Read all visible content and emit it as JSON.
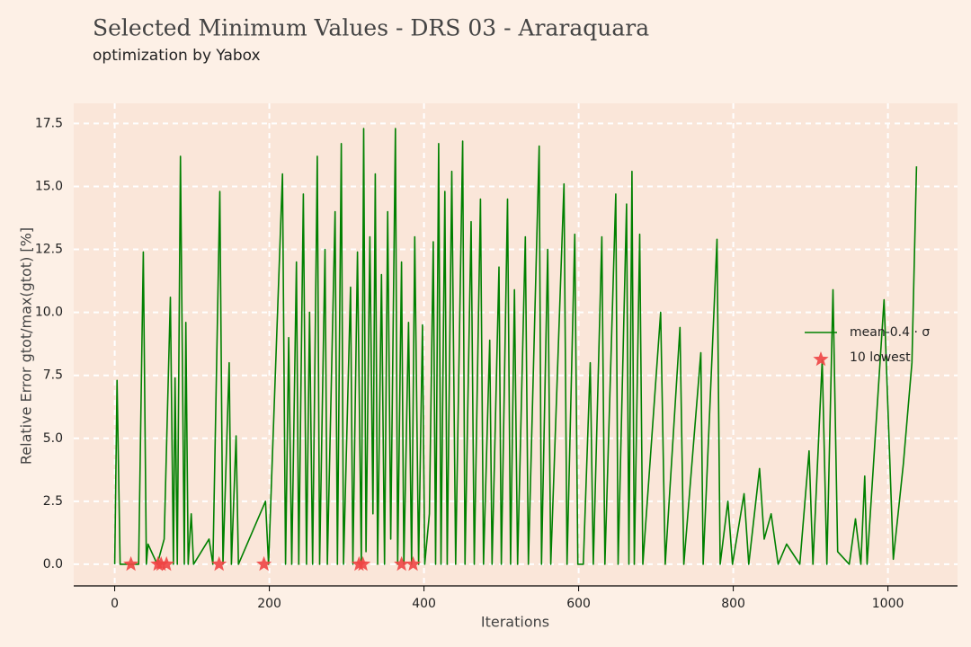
{
  "chart_data": {
    "type": "line",
    "title": "Selected Minimum Values - DRS 03 - Araraquara",
    "subtitle": "optimization by Yabox",
    "x_label": "Iterations",
    "y_label": "Relative Error gtot/max(gtot) [%]",
    "xlim": [
      -53,
      1090
    ],
    "ylim": [
      -0.86,
      18.3
    ],
    "xticks": [
      0,
      200,
      400,
      600,
      800,
      1000
    ],
    "yticks": [
      {
        "value": 0,
        "label": "0.0"
      },
      2.5,
      {
        "value": 5,
        "label": "5.0"
      },
      7.5,
      {
        "value": 10,
        "label": "10.0"
      },
      12.5,
      {
        "value": 15,
        "label": "15.0"
      },
      17.5
    ],
    "grid": true,
    "legend": "right",
    "series": [
      {
        "name": "mean-0.4 · σ",
        "color": "#008000",
        "x": [
          0,
          3,
          7,
          31,
          37,
          41,
          43,
          55,
          64,
          72,
          76,
          78,
          81,
          85,
          90,
          92,
          95,
          99,
          102,
          122,
          127,
          136,
          140,
          148,
          151,
          157,
          160,
          195,
          199,
          217,
          221,
          225,
          229,
          235,
          238,
          244,
          248,
          252,
          256,
          262,
          265,
          272,
          275,
          285,
          288,
          293,
          296,
          305,
          308,
          314,
          319,
          322,
          325,
          330,
          334,
          337,
          340,
          345,
          349,
          353,
          357,
          363,
          366,
          371,
          374,
          380,
          384,
          388,
          393,
          398,
          401,
          407,
          412,
          415,
          419,
          422,
          427,
          430,
          436,
          441,
          450,
          453,
          461,
          465,
          473,
          477,
          485,
          488,
          497,
          500,
          508,
          512,
          517,
          521,
          531,
          535,
          549,
          552,
          560,
          564,
          581,
          585,
          595,
          599,
          606,
          615,
          619,
          630,
          634,
          648,
          651,
          662,
          665,
          669,
          672,
          679,
          683,
          706,
          712,
          731,
          736,
          758,
          761,
          779,
          783,
          793,
          799,
          814,
          820,
          834,
          840,
          849,
          858,
          869,
          886,
          898,
          903,
          915,
          921,
          929,
          935,
          950,
          958,
          965,
          970,
          973,
          995,
          1007,
          1020,
          1031,
          1037
        ],
        "values": [
          0,
          7.3,
          0,
          0,
          12.4,
          0,
          0.8,
          0,
          1,
          10.6,
          0,
          7.4,
          0,
          16.2,
          0,
          9.6,
          0,
          2,
          0,
          1,
          0,
          14.8,
          0,
          8,
          0,
          5.1,
          0,
          2.5,
          0,
          15.5,
          0,
          9,
          0,
          12,
          0,
          14.7,
          0,
          10,
          0,
          16.2,
          0,
          12.5,
          0,
          14,
          0,
          16.7,
          0,
          11,
          0,
          12.4,
          0,
          17.3,
          0.5,
          13,
          2,
          15.5,
          0,
          11.5,
          0,
          14,
          1,
          17.3,
          0,
          12,
          0,
          9.6,
          0,
          13,
          0,
          9.5,
          0,
          2,
          12.8,
          0,
          16.7,
          0,
          14.8,
          0,
          15.6,
          0,
          16.8,
          0,
          13.6,
          0,
          14.5,
          0,
          8.9,
          0,
          11.8,
          0,
          14.5,
          0,
          10.9,
          0,
          13,
          0,
          16.6,
          0,
          12.5,
          0,
          15.1,
          0,
          13.1,
          0,
          0,
          8,
          0,
          13,
          0,
          14.7,
          0,
          14.3,
          0,
          15.6,
          0,
          13.1,
          0,
          10,
          0,
          9.4,
          0,
          8.4,
          0,
          12.9,
          0,
          2.5,
          0,
          2.8,
          0,
          3.8,
          1,
          2,
          0,
          0.8,
          0,
          4.5,
          0,
          8.1,
          0,
          10.9,
          0.5,
          0,
          1.8,
          0,
          3.5,
          0,
          10.5,
          0.2,
          4,
          8,
          15.8
        ]
      },
      {
        "name": "10 lowest",
        "color": "#ee4444",
        "x": [
          21,
          56,
          60,
          67,
          135,
          193,
          316,
          321,
          371,
          386
        ],
        "values": [
          0,
          0,
          0,
          0,
          0,
          0,
          0,
          0,
          0,
          0
        ]
      }
    ]
  }
}
